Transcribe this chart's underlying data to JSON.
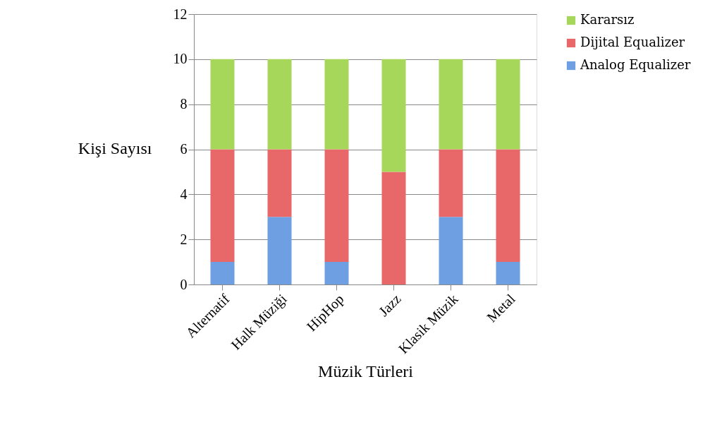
{
  "chart_data": {
    "type": "bar",
    "stacked": true,
    "xlabel": "Müzik Türleri",
    "ylabel": "Kişi Sayısı",
    "categories": [
      "Alternatif",
      "Halk Müziği",
      "HipHop",
      "Jazz",
      "Klasik Müzik",
      "Metal"
    ],
    "series": [
      {
        "name": "Analog Equalizer",
        "color": "#6f9fe3",
        "values": [
          1,
          3,
          1,
          0,
          3,
          1
        ]
      },
      {
        "name": "Dijital Equalizer",
        "color": "#e8686a",
        "values": [
          5,
          3,
          5,
          5,
          3,
          5
        ]
      },
      {
        "name": "Kararsız",
        "color": "#a6d65a",
        "values": [
          4,
          4,
          4,
          5,
          4,
          4
        ]
      }
    ],
    "ylim": [
      0,
      12
    ],
    "yticks": [
      0,
      2,
      4,
      6,
      8,
      10,
      12
    ],
    "grid": "y",
    "legend": "right"
  }
}
